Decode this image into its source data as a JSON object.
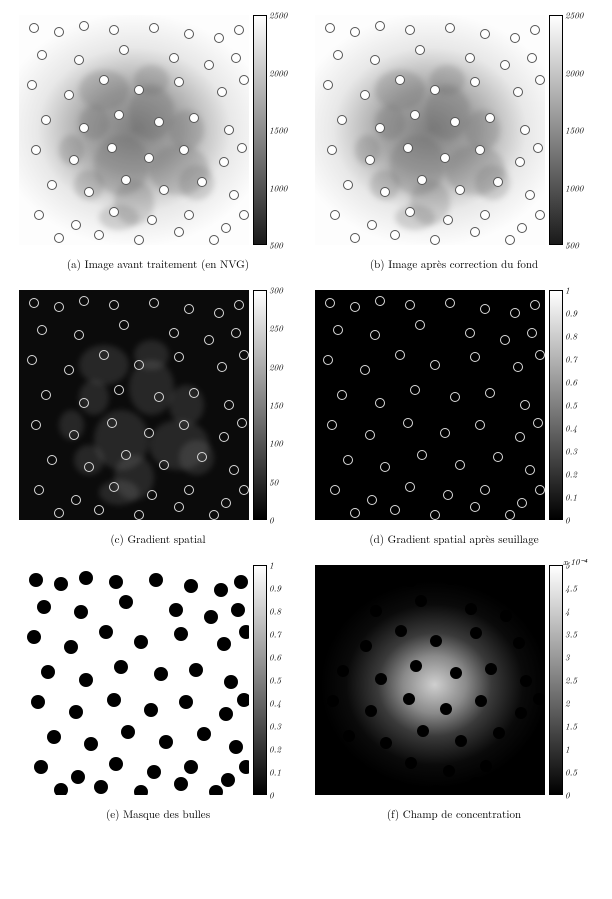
{
  "panels": [
    {
      "id": "a",
      "caption": "(a) Image avant traitement (en NVG)",
      "img_class": "light-bg",
      "bubble_class": "ring-light",
      "swirls": true,
      "swirl_color": "#5a5a5a",
      "colorbar": {
        "gradient": "linear-gradient(to top, #1a1a1a 0%, #ffffff 100%)",
        "ticks": [
          {
            "label": "2500",
            "pos": 0
          },
          {
            "label": "2000",
            "pos": 25
          },
          {
            "label": "1500",
            "pos": 50
          },
          {
            "label": "1000",
            "pos": 75
          },
          {
            "label": "500",
            "pos": 100
          }
        ],
        "exp_label": null
      }
    },
    {
      "id": "b",
      "caption": "(b) Image après correction du fond",
      "img_class": "light-bg",
      "bubble_class": "ring-light",
      "swirls": true,
      "swirl_color": "#5a5a5a",
      "colorbar": {
        "gradient": "linear-gradient(to top, #1a1a1a 0%, #ffffff 100%)",
        "ticks": [
          {
            "label": "2500",
            "pos": 0
          },
          {
            "label": "2000",
            "pos": 25
          },
          {
            "label": "1500",
            "pos": 50
          },
          {
            "label": "1000",
            "pos": 75
          },
          {
            "label": "500",
            "pos": 100
          }
        ],
        "exp_label": null
      }
    },
    {
      "id": "c",
      "caption": "(c) Gradient spatial",
      "img_class": "dark-bg",
      "bubble_class": "ring-dark",
      "swirls": true,
      "swirl_color": "#8a8a8a",
      "colorbar": {
        "gradient": "linear-gradient(to top, #000000 0%, #ffffff 100%)",
        "ticks": [
          {
            "label": "300",
            "pos": 0
          },
          {
            "label": "250",
            "pos": 16.7
          },
          {
            "label": "200",
            "pos": 33.3
          },
          {
            "label": "150",
            "pos": 50
          },
          {
            "label": "100",
            "pos": 66.7
          },
          {
            "label": "50",
            "pos": 83.3
          },
          {
            "label": "0",
            "pos": 100
          }
        ],
        "exp_label": null
      }
    },
    {
      "id": "d",
      "caption": "(d) Gradient spatial après seuillage",
      "img_class": "black-bg",
      "bubble_class": "ring-dark",
      "swirls": false,
      "swirl_color": null,
      "colorbar": {
        "gradient": "linear-gradient(to top, #000000 0%, #ffffff 100%)",
        "ticks": [
          {
            "label": "1",
            "pos": 0
          },
          {
            "label": "0.9",
            "pos": 10
          },
          {
            "label": "0.8",
            "pos": 20
          },
          {
            "label": "0.7",
            "pos": 30
          },
          {
            "label": "0.6",
            "pos": 40
          },
          {
            "label": "0.5",
            "pos": 50
          },
          {
            "label": "0.4",
            "pos": 60
          },
          {
            "label": "0.3",
            "pos": 70
          },
          {
            "label": "0.2",
            "pos": 80
          },
          {
            "label": "0.1",
            "pos": 90
          },
          {
            "label": "0",
            "pos": 100
          }
        ],
        "exp_label": null
      }
    },
    {
      "id": "e",
      "caption": "(e) Masque des bulles",
      "img_class": "white-bg",
      "bubble_class": "solid-black",
      "swirls": false,
      "swirl_color": null,
      "colorbar": {
        "gradient": "linear-gradient(to top, #000000 0%, #ffffff 100%)",
        "ticks": [
          {
            "label": "1",
            "pos": 0
          },
          {
            "label": "0.9",
            "pos": 10
          },
          {
            "label": "0.8",
            "pos": 20
          },
          {
            "label": "0.7",
            "pos": 30
          },
          {
            "label": "0.6",
            "pos": 40
          },
          {
            "label": "0.5",
            "pos": 50
          },
          {
            "label": "0.4",
            "pos": 60
          },
          {
            "label": "0.3",
            "pos": 70
          },
          {
            "label": "0.2",
            "pos": 80
          },
          {
            "label": "0.1",
            "pos": 90
          },
          {
            "label": "0",
            "pos": 100
          }
        ],
        "exp_label": null
      }
    },
    {
      "id": "f",
      "caption": "(f) Champ de concentration",
      "img_class": "conc-bg",
      "bubble_class": "solid-black-small",
      "swirls": false,
      "swirl_color": null,
      "colorbar": {
        "gradient": "linear-gradient(to top, #000000 0%, #ffffff 100%)",
        "ticks": [
          {
            "label": "5",
            "pos": 0
          },
          {
            "label": "4.5",
            "pos": 10
          },
          {
            "label": "4",
            "pos": 20
          },
          {
            "label": "3.5",
            "pos": 30
          },
          {
            "label": "3",
            "pos": 40
          },
          {
            "label": "2.5",
            "pos": 50
          },
          {
            "label": "2",
            "pos": 60
          },
          {
            "label": "1.5",
            "pos": 70
          },
          {
            "label": "1",
            "pos": 80
          },
          {
            "label": "0.5",
            "pos": 90
          },
          {
            "label": "0",
            "pos": 100
          }
        ],
        "exp_label": "x 10⁻⁴"
      }
    }
  ],
  "bubble_positions": [
    [
      10,
      8
    ],
    [
      35,
      12
    ],
    [
      60,
      6
    ],
    [
      90,
      10
    ],
    [
      130,
      8
    ],
    [
      165,
      14
    ],
    [
      195,
      18
    ],
    [
      215,
      10
    ],
    [
      18,
      35
    ],
    [
      55,
      40
    ],
    [
      100,
      30
    ],
    [
      150,
      38
    ],
    [
      185,
      45
    ],
    [
      212,
      38
    ],
    [
      8,
      65
    ],
    [
      45,
      75
    ],
    [
      80,
      60
    ],
    [
      115,
      70
    ],
    [
      155,
      62
    ],
    [
      198,
      72
    ],
    [
      220,
      60
    ],
    [
      22,
      100
    ],
    [
      60,
      108
    ],
    [
      95,
      95
    ],
    [
      135,
      102
    ],
    [
      170,
      98
    ],
    [
      205,
      110
    ],
    [
      12,
      130
    ],
    [
      50,
      140
    ],
    [
      88,
      128
    ],
    [
      125,
      138
    ],
    [
      160,
      130
    ],
    [
      200,
      142
    ],
    [
      218,
      128
    ],
    [
      28,
      165
    ],
    [
      65,
      172
    ],
    [
      102,
      160
    ],
    [
      140,
      170
    ],
    [
      178,
      162
    ],
    [
      210,
      175
    ],
    [
      15,
      195
    ],
    [
      52,
      205
    ],
    [
      90,
      192
    ],
    [
      128,
      200
    ],
    [
      165,
      195
    ],
    [
      202,
      208
    ],
    [
      220,
      195
    ],
    [
      35,
      218
    ],
    [
      75,
      215
    ],
    [
      115,
      220
    ],
    [
      155,
      212
    ],
    [
      190,
      220
    ]
  ],
  "swirl_shapes": [
    [
      60,
      55,
      50,
      40
    ],
    [
      110,
      70,
      45,
      55
    ],
    [
      75,
      120,
      55,
      60
    ],
    [
      130,
      130,
      60,
      50
    ],
    [
      95,
      165,
      40,
      45
    ],
    [
      150,
      95,
      35,
      40
    ],
    [
      60,
      90,
      30,
      35
    ],
    [
      115,
      50,
      35,
      30
    ],
    [
      80,
      190,
      40,
      25
    ],
    [
      55,
      155,
      30,
      30
    ],
    [
      160,
      150,
      35,
      35
    ],
    [
      40,
      120,
      25,
      30
    ]
  ]
}
